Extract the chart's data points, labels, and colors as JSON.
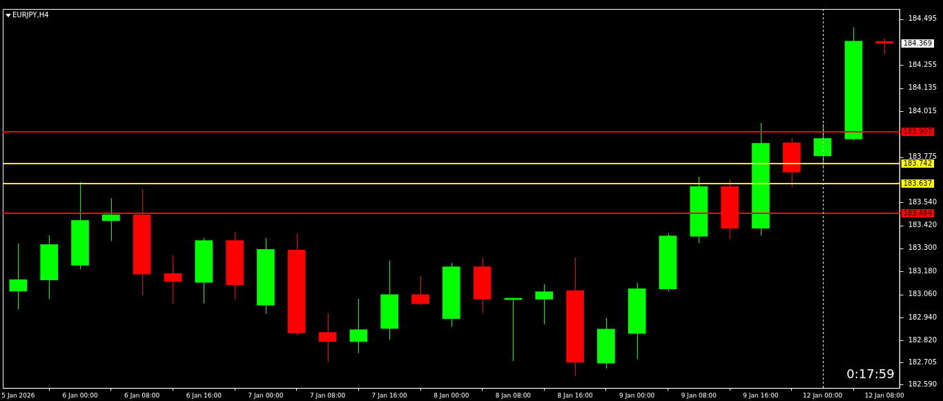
{
  "chart_data": {
    "type": "candlestick",
    "title": "EURJPY,H4",
    "categories": [
      "5 Jan 2026",
      null,
      "6 Jan 00:00",
      null,
      "6 Jan 08:00",
      null,
      "6 Jan 16:00",
      null,
      "7 Jan 00:00",
      null,
      "7 Jan 08:00",
      null,
      "7 Jan 16:00",
      null,
      "8 Jan 00:00",
      null,
      "8 Jan 08:00",
      null,
      "8 Jan 16:00",
      null,
      "9 Jan 00:00",
      null,
      "9 Jan 08:00",
      null,
      "9 Jan 16:00",
      null,
      "12 Jan 00:00",
      null,
      "12 Jan 08:00"
    ],
    "ohlc": [
      [
        183.077,
        183.326,
        182.981,
        183.137
      ],
      [
        183.135,
        183.368,
        183.035,
        183.32
      ],
      [
        183.212,
        183.646,
        183.193,
        183.446
      ],
      [
        183.444,
        183.561,
        183.338,
        183.475
      ],
      [
        183.475,
        183.608,
        183.054,
        183.166
      ],
      [
        183.169,
        183.264,
        183.011,
        183.127
      ],
      [
        183.123,
        183.355,
        183.013,
        183.341
      ],
      [
        183.341,
        183.386,
        183.033,
        183.11
      ],
      [
        183.004,
        183.355,
        182.959,
        183.295
      ],
      [
        183.291,
        183.376,
        182.846,
        182.859
      ],
      [
        182.862,
        182.961,
        182.708,
        182.814
      ],
      [
        182.814,
        183.038,
        182.754,
        182.876
      ],
      [
        182.882,
        183.235,
        182.824,
        183.059
      ],
      [
        183.059,
        183.156,
        183.003,
        183.011
      ],
      [
        182.934,
        183.225,
        182.891,
        183.204
      ],
      [
        183.204,
        183.251,
        182.961,
        183.035
      ],
      [
        183.033,
        183.042,
        182.712,
        183.037
      ],
      [
        183.035,
        183.113,
        182.905,
        183.074
      ],
      [
        183.08,
        183.253,
        182.635,
        182.706
      ],
      [
        182.702,
        182.938,
        182.673,
        182.879
      ],
      [
        182.856,
        183.119,
        182.722,
        183.09
      ],
      [
        183.088,
        183.378,
        183.075,
        183.365
      ],
      [
        183.363,
        183.675,
        183.326,
        183.622
      ],
      [
        183.622,
        183.658,
        183.347,
        183.405
      ],
      [
        183.405,
        183.954,
        183.367,
        183.848
      ],
      [
        183.851,
        183.873,
        183.62,
        183.697
      ],
      [
        183.782,
        183.949,
        183.723,
        183.873
      ],
      [
        183.87,
        184.453,
        183.862,
        184.38
      ],
      [
        184.379,
        184.397,
        184.312,
        184.369
      ]
    ],
    "colors": [
      "#00ff00",
      "#00ff00",
      "#00ff00",
      "#00ff00",
      "#ff0000",
      "#ff0000",
      "#00ff00",
      "#ff0000",
      "#00ff00",
      "#ff0000",
      "#ff0000",
      "#00ff00",
      "#00ff00",
      "#ff0000",
      "#00ff00",
      "#ff0000",
      "#00ff00",
      "#00ff00",
      "#ff0000",
      "#00ff00",
      "#00ff00",
      "#00ff00",
      "#00ff00",
      "#ff0000",
      "#00ff00",
      "#ff0000",
      "#00ff00",
      "#00ff00",
      "#ff0000"
    ],
    "ylim": [
      182.572,
      184.548
    ],
    "yticks": [
      {
        "value": 182.59,
        "label": "182.590"
      },
      {
        "value": 182.705,
        "label": "182.705"
      },
      {
        "value": 182.82,
        "label": "182.820"
      },
      {
        "value": 182.94,
        "label": "182.940"
      },
      {
        "value": 183.06,
        "label": "183.060"
      },
      {
        "value": 183.18,
        "label": "183.180"
      },
      {
        "value": 183.3,
        "label": "183.300"
      },
      {
        "value": 183.42,
        "label": "183.420"
      },
      {
        "value": 183.54,
        "label": "183.540"
      },
      {
        "value": 183.775,
        "label": "183.775"
      },
      {
        "value": 184.015,
        "label": "184.015"
      },
      {
        "value": 184.135,
        "label": "184.135"
      },
      {
        "value": 184.255,
        "label": "184.255"
      },
      {
        "value": 184.495,
        "label": "184.495"
      }
    ],
    "ref_lines": [
      {
        "axis": "y",
        "value": 183.907,
        "label": "183.907",
        "color": "#ff0000"
      },
      {
        "axis": "y",
        "value": 183.742,
        "label": "183.742",
        "color": "#ffff00"
      },
      {
        "axis": "y",
        "value": 183.637,
        "label": "183.637",
        "color": "#ffff00"
      },
      {
        "axis": "y",
        "value": 183.484,
        "label": "183.484",
        "color": "#ff0000"
      },
      {
        "axis": "x",
        "value": "12 Jan 00:00",
        "color": "#ffffff",
        "line_style": "dashed"
      }
    ],
    "annotations": [
      "184.369",
      "0:17:59"
    ],
    "grid": false,
    "legend": false
  }
}
